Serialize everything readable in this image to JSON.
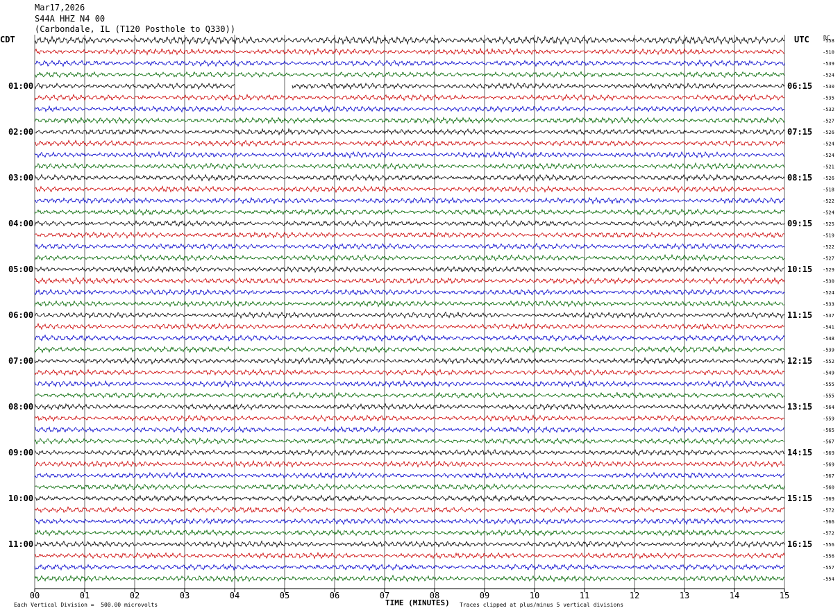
{
  "header": {
    "date": "Mar17,2026",
    "station": "S44A HHZ N4 00",
    "location": "(Carbondale, IL (T120 Posthole to Q330))"
  },
  "left_tz": "CDT",
  "right_tz": "UTC",
  "dc_label": "DC",
  "footer": {
    "scale": "Each Vertical Division =  500.00 microvolts",
    "clip": "Traces clipped at plus/minus 5 vertical divisions"
  },
  "colors": {
    "trace_cycle": [
      "#000000",
      "#cc0000",
      "#0000cc",
      "#006600"
    ],
    "grid": "#000000"
  },
  "chart_data": {
    "type": "line",
    "title": "S44A HHZ N4 00",
    "xlabel": "TIME (MINUTES)",
    "xlim": [
      0,
      15
    ],
    "x_ticks": [
      "00",
      "01",
      "02",
      "03",
      "04",
      "05",
      "06",
      "07",
      "08",
      "09",
      "10",
      "11",
      "12",
      "13",
      "14",
      "15"
    ],
    "left_hour_labels": [
      {
        "row": 4,
        "label": "01:00"
      },
      {
        "row": 8,
        "label": "02:00"
      },
      {
        "row": 12,
        "label": "03:00"
      },
      {
        "row": 16,
        "label": "04:00"
      },
      {
        "row": 20,
        "label": "05:00"
      },
      {
        "row": 24,
        "label": "06:00"
      },
      {
        "row": 28,
        "label": "07:00"
      },
      {
        "row": 32,
        "label": "08:00"
      },
      {
        "row": 36,
        "label": "09:00"
      },
      {
        "row": 40,
        "label": "10:00"
      },
      {
        "row": 44,
        "label": "11:00"
      }
    ],
    "right_hour_labels": [
      {
        "row": 4,
        "label": "06:15"
      },
      {
        "row": 8,
        "label": "07:15"
      },
      {
        "row": 12,
        "label": "08:15"
      },
      {
        "row": 16,
        "label": "09:15"
      },
      {
        "row": 20,
        "label": "10:15"
      },
      {
        "row": 24,
        "label": "11:15"
      },
      {
        "row": 28,
        "label": "12:15"
      },
      {
        "row": 32,
        "label": "13:15"
      },
      {
        "row": 36,
        "label": "14:15"
      },
      {
        "row": 40,
        "label": "15:15"
      },
      {
        "row": 44,
        "label": "16:15"
      }
    ],
    "dc_offsets": [
      "-558",
      "-510",
      "-539",
      "-524",
      "-530",
      "-535",
      "-532",
      "-527",
      "-526",
      "-524",
      "-524",
      "-521",
      "-526",
      "-518",
      "-522",
      "-524",
      "-525",
      "-519",
      "-522",
      "-527",
      "-529",
      "-530",
      "-524",
      "-533",
      "-537",
      "-541",
      "-548",
      "-539",
      "-552",
      "-549",
      "-555",
      "-555",
      "-564",
      "-559",
      "-565",
      "-567",
      "-569",
      "-569",
      "-567",
      "-560",
      "-569",
      "-572",
      "-566",
      "-572",
      "-556",
      "-556",
      "-557",
      "-554"
    ],
    "gap": {
      "row": 4,
      "x_start": 4.0,
      "x_end": 5.15
    },
    "rows": 48
  }
}
